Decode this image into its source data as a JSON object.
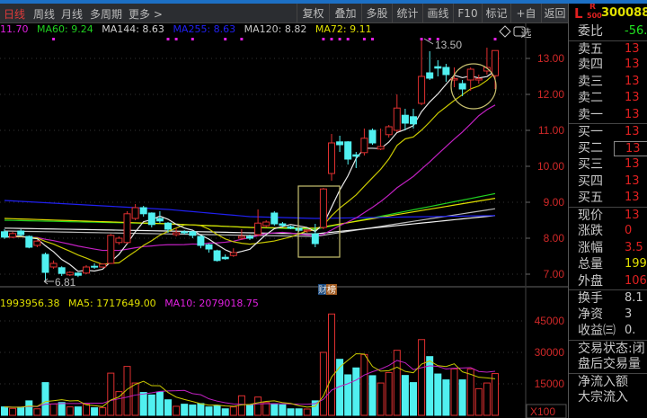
{
  "toolbar": {
    "tabs": [
      "日线",
      "周线",
      "月线",
      "多周期",
      "更多 >"
    ],
    "buttons": [
      "复权",
      "叠加",
      "多股",
      "统计",
      "画线",
      "F10",
      "标记",
      "+自选",
      "返回"
    ]
  },
  "ma_legend": [
    {
      "text": "11.70",
      "color": "#e020e0"
    },
    {
      "text": "MA60: 9.24",
      "color": "#20d020"
    },
    {
      "text": "MA144: 8.63",
      "color": "#d0d0d0"
    },
    {
      "text": "MA255: 8.63",
      "color": "#2020f0"
    },
    {
      "text": "MA120: 8.82",
      "color": "#c8c8c8"
    },
    {
      "text": "MA72: 9.11",
      "color": "#e0e000"
    }
  ],
  "vol_legend": [
    {
      "text": "1993956.38",
      "color": "#e0e000"
    },
    {
      "text": "MA5: 1717649.00",
      "color": "#e0e000"
    },
    {
      "text": "MA10: 2079018.75",
      "color": "#e020e0"
    }
  ],
  "annotations": {
    "high_label": "13.50",
    "low_label": "6.81",
    "badge": [
      "财",
      "榜"
    ]
  },
  "colors": {
    "up": "#e03030",
    "down": "#50f0f0",
    "ma5": "#e8e8e8",
    "ma10": "#c8c800",
    "ma20": "#c020c0",
    "marker": "#e020e0"
  },
  "chart_data": [
    {
      "type": "candlestick",
      "title": "",
      "price_ticks": [
        13.0,
        12.0,
        11.0,
        10.0,
        9.0,
        8.0,
        7.0
      ],
      "ylim": [
        6.5,
        13.6
      ],
      "ohlc": [
        [
          8.18,
          8.25,
          7.98,
          8.03
        ],
        [
          8.03,
          8.18,
          8.0,
          8.13
        ],
        [
          8.2,
          8.25,
          8.05,
          8.1
        ],
        [
          8.05,
          8.08,
          7.72,
          7.75
        ],
        [
          7.8,
          7.95,
          7.75,
          7.92
        ],
        [
          7.55,
          7.6,
          6.81,
          7.05
        ],
        [
          7.2,
          7.38,
          7.15,
          7.3
        ],
        [
          7.18,
          7.22,
          6.95,
          7.02
        ],
        [
          6.98,
          7.08,
          6.95,
          7.05
        ],
        [
          7.03,
          7.05,
          6.92,
          6.97
        ],
        [
          7.03,
          7.25,
          7.0,
          7.2
        ],
        [
          7.22,
          7.3,
          7.15,
          7.2
        ],
        [
          7.2,
          7.3,
          7.18,
          7.28
        ],
        [
          7.3,
          8.12,
          7.28,
          8.08
        ],
        [
          7.88,
          8.05,
          7.82,
          8.0
        ],
        [
          7.88,
          8.75,
          7.85,
          8.68
        ],
        [
          8.55,
          8.95,
          8.5,
          8.85
        ],
        [
          8.85,
          8.9,
          8.6,
          8.68
        ],
        [
          8.7,
          8.72,
          8.3,
          8.38
        ],
        [
          8.55,
          8.75,
          8.42,
          8.48
        ],
        [
          8.42,
          8.45,
          8.15,
          8.25
        ],
        [
          8.1,
          8.28,
          8.05,
          8.15
        ],
        [
          8.18,
          8.22,
          8.1,
          8.15
        ],
        [
          8.18,
          8.2,
          8.0,
          8.08
        ],
        [
          8.05,
          8.08,
          7.72,
          7.8
        ],
        [
          7.82,
          7.85,
          7.6,
          7.7
        ],
        [
          7.65,
          7.68,
          7.35,
          7.38
        ],
        [
          7.47,
          7.55,
          7.4,
          7.43
        ],
        [
          7.52,
          7.72,
          7.48,
          7.6
        ],
        [
          8.0,
          8.25,
          7.95,
          8.05
        ],
        [
          8.05,
          8.1,
          7.95,
          8.0
        ],
        [
          8.1,
          8.8,
          8.05,
          8.42
        ],
        [
          8.35,
          8.5,
          8.3,
          8.45
        ],
        [
          8.7,
          8.75,
          8.35,
          8.4
        ],
        [
          8.4,
          8.45,
          8.3,
          8.36
        ],
        [
          8.32,
          8.35,
          8.25,
          8.28
        ],
        [
          8.28,
          8.3,
          8.18,
          8.22
        ],
        [
          8.2,
          8.25,
          8.15,
          8.23
        ],
        [
          8.12,
          8.4,
          7.75,
          7.85
        ],
        [
          8.3,
          9.4,
          8.25,
          9.37
        ],
        [
          9.8,
          10.9,
          9.6,
          10.65
        ],
        [
          10.68,
          10.85,
          10.4,
          10.6
        ],
        [
          10.68,
          10.7,
          10.05,
          10.2
        ],
        [
          10.32,
          10.4,
          9.95,
          10.28
        ],
        [
          10.38,
          11.05,
          10.3,
          10.78
        ],
        [
          11.0,
          11.05,
          10.6,
          10.65
        ],
        [
          10.48,
          11.05,
          10.45,
          10.55
        ],
        [
          10.88,
          11.15,
          10.8,
          11.1
        ],
        [
          11.0,
          12.0,
          10.95,
          11.62
        ],
        [
          11.42,
          11.6,
          11.0,
          11.2
        ],
        [
          11.38,
          11.6,
          11.05,
          11.18
        ],
        [
          11.75,
          13.5,
          11.7,
          12.5
        ],
        [
          12.6,
          13.2,
          12.4,
          12.45
        ],
        [
          12.77,
          12.95,
          12.5,
          12.73
        ],
        [
          12.75,
          12.85,
          12.35,
          12.55
        ],
        [
          12.4,
          12.75,
          12.2,
          12.44
        ],
        [
          12.3,
          12.4,
          11.95,
          12.15
        ],
        [
          12.4,
          12.75,
          12.1,
          12.7
        ],
        [
          12.4,
          12.55,
          12.3,
          12.44
        ],
        [
          12.65,
          13.3,
          12.55,
          12.75
        ],
        [
          12.52,
          13.22,
          12.15,
          13.22
        ]
      ],
      "long_ma": [
        {
          "name": "MA60",
          "color": "#20d020",
          "values": [
            8.5,
            8.4,
            8.3,
            8.25,
            9.24
          ]
        },
        {
          "name": "MA72",
          "color": "#e0e000",
          "values": [
            8.55,
            8.4,
            8.3,
            8.28,
            9.11
          ]
        },
        {
          "name": "MA120",
          "color": "#b8b8b8",
          "values": [
            8.2,
            8.12,
            8.08,
            8.05,
            8.82
          ]
        },
        {
          "name": "MA144",
          "color": "#f0f0f0",
          "values": [
            8.28,
            8.2,
            8.15,
            8.12,
            8.63
          ]
        },
        {
          "name": "MA255",
          "color": "#2020f0",
          "values": [
            9.05,
            8.8,
            8.6,
            8.55,
            8.63
          ]
        }
      ],
      "top_markers": [
        6,
        20,
        21,
        23,
        27,
        29,
        39,
        40,
        41,
        42,
        44,
        45,
        51,
        52,
        53,
        60
      ]
    },
    {
      "type": "bar",
      "title": "",
      "unit": "X100",
      "y_ticks": [
        45000,
        30000,
        15000
      ],
      "ylim": [
        0,
        49000
      ],
      "values": [
        4000,
        3300,
        3900,
        6900,
        3100,
        15600,
        5400,
        6100,
        4000,
        4000,
        5300,
        3600,
        3600,
        20100,
        11300,
        23300,
        15400,
        10900,
        9700,
        11100,
        7400,
        4300,
        5300,
        4900,
        5600,
        4000,
        4600,
        3100,
        4000,
        9300,
        5000,
        8700,
        6100,
        5400,
        5000,
        3100,
        3100,
        3000,
        6900,
        30000,
        48300,
        26700,
        19300,
        22600,
        29000,
        18900,
        15400,
        20400,
        31000,
        19000,
        15600,
        36100,
        28000,
        19700,
        16900,
        22100,
        16900,
        22100,
        12700,
        15400,
        19900
      ]
    }
  ],
  "right_panel": {
    "code_prefix": "L",
    "badge_top": "R",
    "badge_bottom": "500",
    "code": "300088",
    "rows": [
      {
        "k": "委比",
        "v": "-56.0",
        "c": "#20e020",
        "sep": false
      },
      {
        "k": "卖五",
        "v": "13",
        "c": "#e02020",
        "sep": true
      },
      {
        "k": "卖四",
        "v": "13",
        "c": "#e02020"
      },
      {
        "k": "卖三",
        "v": "13",
        "c": "#e02020"
      },
      {
        "k": "卖二",
        "v": "13",
        "c": "#e02020"
      },
      {
        "k": "卖一",
        "v": "13",
        "c": "#e02020"
      },
      {
        "k": "买一",
        "v": "13",
        "c": "#e02020",
        "sep": true
      },
      {
        "k": "买二",
        "v": "13",
        "c": "#e02020",
        "box": true
      },
      {
        "k": "买三",
        "v": "13",
        "c": "#e02020"
      },
      {
        "k": "买四",
        "v": "13",
        "c": "#e02020"
      },
      {
        "k": "买五",
        "v": "13",
        "c": "#e02020"
      },
      {
        "k": "现价",
        "v": "13",
        "c": "#e02020",
        "sep": true
      },
      {
        "k": "涨跌",
        "v": "0",
        "c": "#e02020"
      },
      {
        "k": "涨幅",
        "v": "3.5",
        "c": "#e02020"
      },
      {
        "k": "总量",
        "v": "199.",
        "c": "#e0e000"
      },
      {
        "k": "外盘",
        "v": "106.",
        "c": "#e02020"
      },
      {
        "k": "换手",
        "v": "8.1",
        "c": "#c8c8c8",
        "sep": true
      },
      {
        "k": "净资",
        "v": "3",
        "c": "#c8c8c8"
      },
      {
        "k": "收益㈢",
        "v": "0.",
        "c": "#c8c8c8"
      },
      {
        "k": "交易状态:闭",
        "v": "",
        "c": "#c8c8c8",
        "sep": true
      },
      {
        "k": "盘后交易量",
        "v": "",
        "c": "#c8c8c8"
      },
      {
        "k": "净流入额",
        "v": "",
        "c": "#c8c8c8",
        "sep": true
      },
      {
        "k": "大宗流入",
        "v": "",
        "c": "#c8c8c8"
      }
    ]
  }
}
